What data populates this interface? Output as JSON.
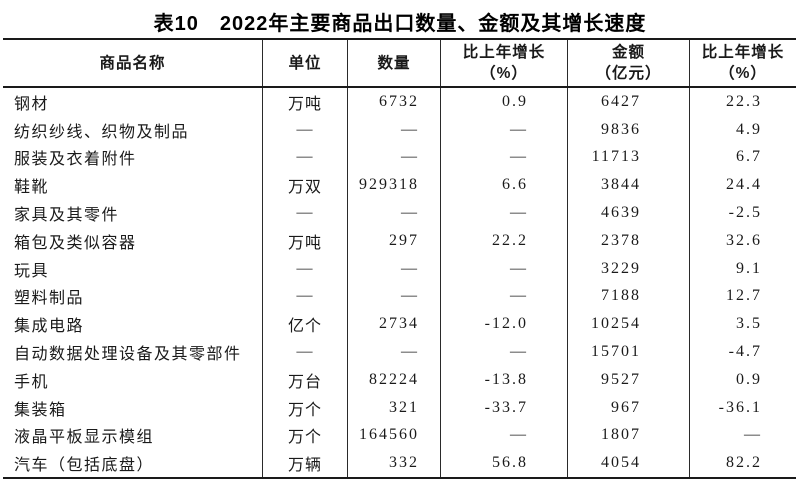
{
  "title": "表10　2022年主要商品出口数量、金额及其增长速度",
  "colors": {
    "background": "#ffffff",
    "text": "#1a1a1a",
    "rule": "#1a1a1a"
  },
  "table": {
    "headers": {
      "name": "商品名称",
      "unit": "单位",
      "qty": "数量",
      "qty_growth_line1": "比上年增长",
      "qty_growth_line2": "（%）",
      "amount_line1": "金额",
      "amount_line2": "（亿元）",
      "amount_growth_line1": "比上年增长",
      "amount_growth_line2": "（%）"
    },
    "rows": [
      {
        "name": "钢材",
        "unit": "万吨",
        "qty": "6732",
        "qty_growth": "0.9",
        "amount": "6427",
        "amount_growth": "22.3"
      },
      {
        "name": "纺织纱线、织物及制品",
        "unit": "—",
        "qty": "—",
        "qty_growth": "—",
        "amount": "9836",
        "amount_growth": "4.9"
      },
      {
        "name": "服装及衣着附件",
        "unit": "—",
        "qty": "—",
        "qty_growth": "—",
        "amount": "11713",
        "amount_growth": "6.7"
      },
      {
        "name": "鞋靴",
        "unit": "万双",
        "qty": "929318",
        "qty_growth": "6.6",
        "amount": "3844",
        "amount_growth": "24.4"
      },
      {
        "name": "家具及其零件",
        "unit": "—",
        "qty": "—",
        "qty_growth": "—",
        "amount": "4639",
        "amount_growth": "-2.5"
      },
      {
        "name": "箱包及类似容器",
        "unit": "万吨",
        "qty": "297",
        "qty_growth": "22.2",
        "amount": "2378",
        "amount_growth": "32.6"
      },
      {
        "name": "玩具",
        "unit": "—",
        "qty": "—",
        "qty_growth": "—",
        "amount": "3229",
        "amount_growth": "9.1"
      },
      {
        "name": "塑料制品",
        "unit": "—",
        "qty": "—",
        "qty_growth": "—",
        "amount": "7188",
        "amount_growth": "12.7"
      },
      {
        "name": "集成电路",
        "unit": "亿个",
        "qty": "2734",
        "qty_growth": "-12.0",
        "amount": "10254",
        "amount_growth": "3.5"
      },
      {
        "name": "自动数据处理设备及其零部件",
        "unit": "—",
        "qty": "—",
        "qty_growth": "—",
        "amount": "15701",
        "amount_growth": "-4.7"
      },
      {
        "name": "手机",
        "unit": "万台",
        "qty": "82224",
        "qty_growth": "-13.8",
        "amount": "9527",
        "amount_growth": "0.9"
      },
      {
        "name": "集装箱",
        "unit": "万个",
        "qty": "321",
        "qty_growth": "-33.7",
        "amount": "967",
        "amount_growth": "-36.1"
      },
      {
        "name": "液晶平板显示模组",
        "unit": "万个",
        "qty": "164560",
        "qty_growth": "—",
        "amount": "1807",
        "amount_growth": "—"
      },
      {
        "name": "汽车（包括底盘）",
        "unit": "万辆",
        "qty": "332",
        "qty_growth": "56.8",
        "amount": "4054",
        "amount_growth": "82.2"
      }
    ]
  }
}
